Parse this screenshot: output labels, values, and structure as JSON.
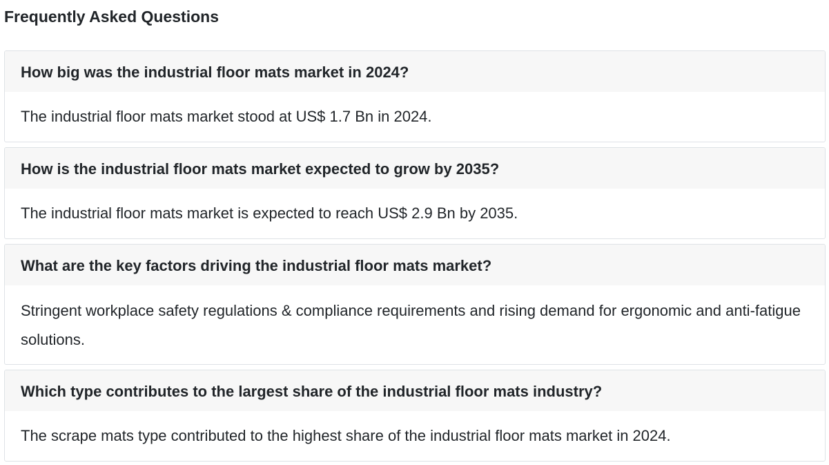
{
  "faq": {
    "heading": "Frequently Asked Questions",
    "items": [
      {
        "question": "How big was the industrial floor mats market in 2024?",
        "answer": "The industrial floor mats market stood at US$ 1.7 Bn in 2024."
      },
      {
        "question": "How is the industrial floor mats market expected to grow by 2035?",
        "answer": "The industrial floor mats market is expected to reach US$ 2.9 Bn by 2035."
      },
      {
        "question": "What are the key factors driving the industrial floor mats market?",
        "answer": "Stringent workplace safety regulations & compliance requirements and rising demand for ergonomic and anti-fatigue solutions."
      },
      {
        "question": "Which type contributes to the largest share of the industrial floor mats industry?",
        "answer": "The scrape mats type contributed to the highest share of the industrial floor mats market in 2024."
      }
    ]
  }
}
